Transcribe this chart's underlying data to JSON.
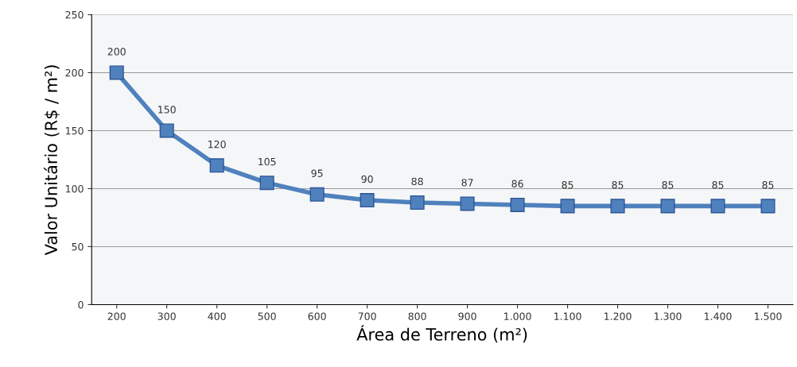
{
  "chart_data": {
    "type": "line",
    "xlabel": "Área de Terreno (m²)",
    "ylabel": "Valor Unitário (R$ / m²)",
    "categories": [
      "200",
      "300",
      "400",
      "500",
      "600",
      "700",
      "800",
      "900",
      "1.000",
      "1.100",
      "1.200",
      "1.300",
      "1.400",
      "1.500"
    ],
    "series": [
      {
        "color": "#4f81bd",
        "values": [
          200,
          150,
          120,
          105,
          95,
          90,
          88,
          87,
          86,
          85,
          85,
          85,
          85,
          85
        ]
      }
    ],
    "ylim": [
      0,
      250
    ],
    "yticks": [
      0,
      50,
      100,
      150,
      200,
      250
    ],
    "grid": "y",
    "marker": "square",
    "line_style": "solid",
    "data_labels": true
  }
}
